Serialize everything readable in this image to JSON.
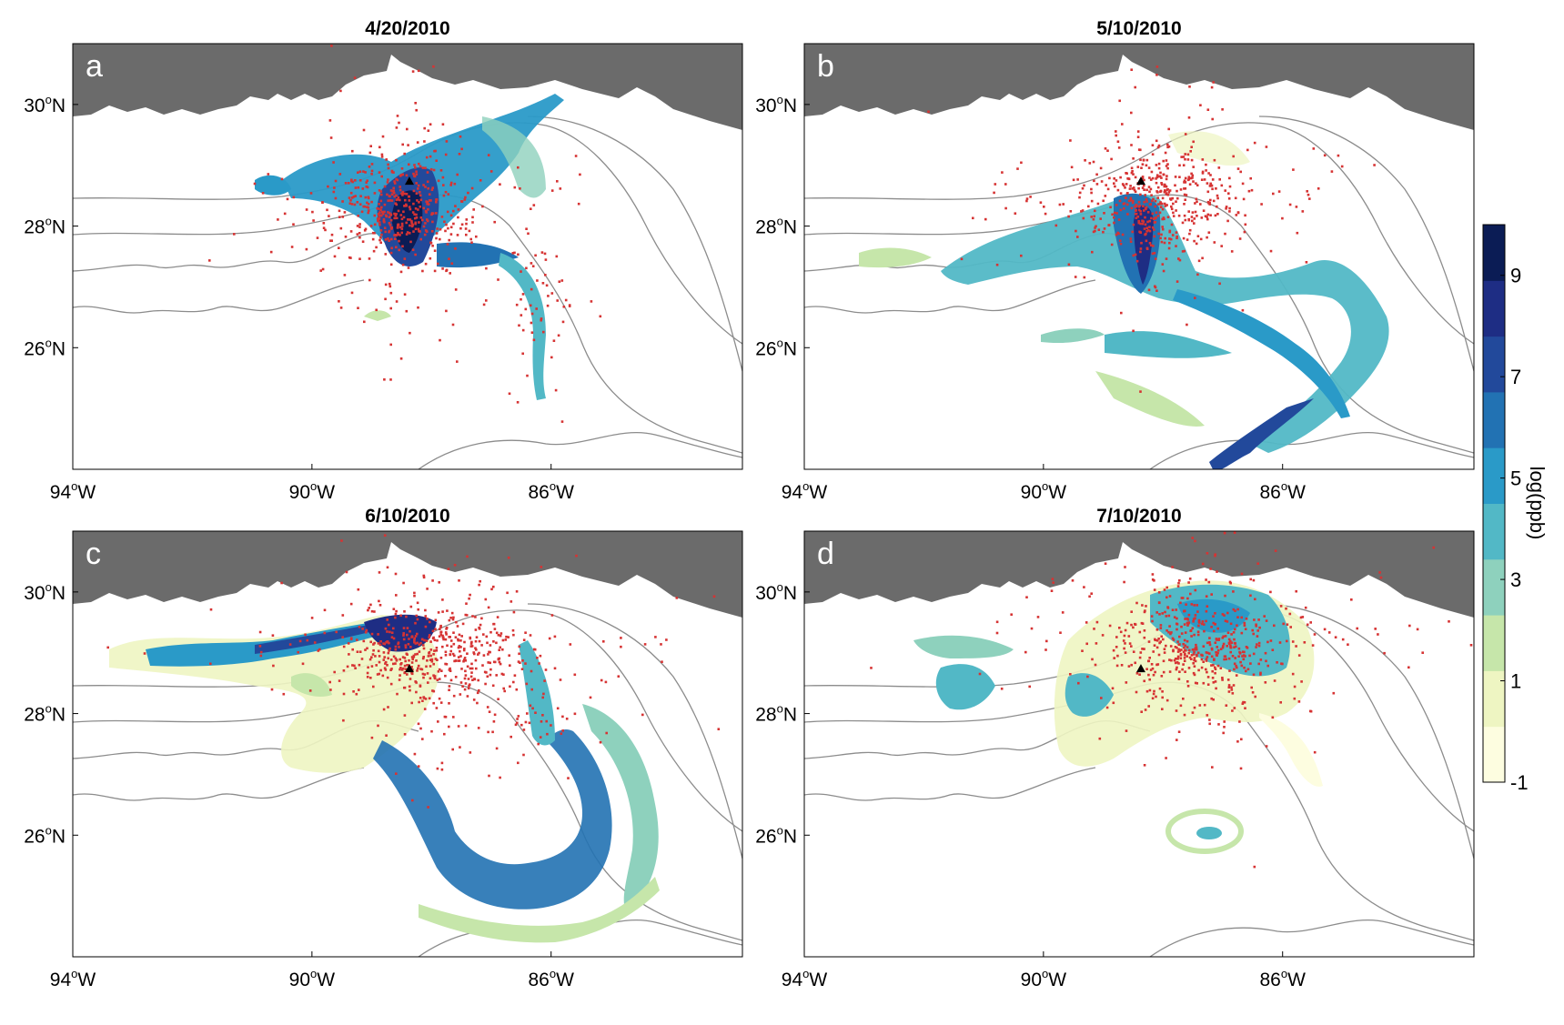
{
  "figure": {
    "panels": [
      {
        "letter": "a",
        "date": "4/20/2010"
      },
      {
        "letter": "b",
        "date": "5/10/2010"
      },
      {
        "letter": "c",
        "date": "6/10/2010"
      },
      {
        "letter": "d",
        "date": "7/10/2010"
      }
    ],
    "x_ticks": [
      {
        "deg": "94",
        "hemi": "W",
        "lon": -94
      },
      {
        "deg": "90",
        "hemi": "W",
        "lon": -90
      },
      {
        "deg": "86",
        "hemi": "W",
        "lon": -86
      }
    ],
    "y_ticks": [
      {
        "deg": "30",
        "hemi": "N",
        "lat": 30
      },
      {
        "deg": "28",
        "hemi": "N",
        "lat": 28
      },
      {
        "deg": "26",
        "hemi": "N",
        "lat": 26
      }
    ],
    "degree_symbol": "o",
    "map_extent": {
      "lon_min": -94,
      "lon_max": -82.8,
      "lat_min": 24.0,
      "lat_max": 31.0
    },
    "land_color": "#6b6b6b",
    "contour_color": "#8c8c8c",
    "particle_color": "#d63333",
    "wellhead_color": "#000000",
    "wellhead_location": {
      "lon": -88.37,
      "lat": 28.74
    },
    "colorbar": {
      "label": "log(ppb)",
      "ticks": [
        "-1",
        "1",
        "3",
        "5",
        "7",
        "9"
      ],
      "range": [
        -1,
        10
      ],
      "colors": [
        "#fdfde0",
        "#eef5c2",
        "#c6e6aa",
        "#8ed1bd",
        "#52b8c6",
        "#2a9ac8",
        "#2272b3",
        "#22499b",
        "#1e2d84",
        "#0b1c55"
      ]
    }
  }
}
